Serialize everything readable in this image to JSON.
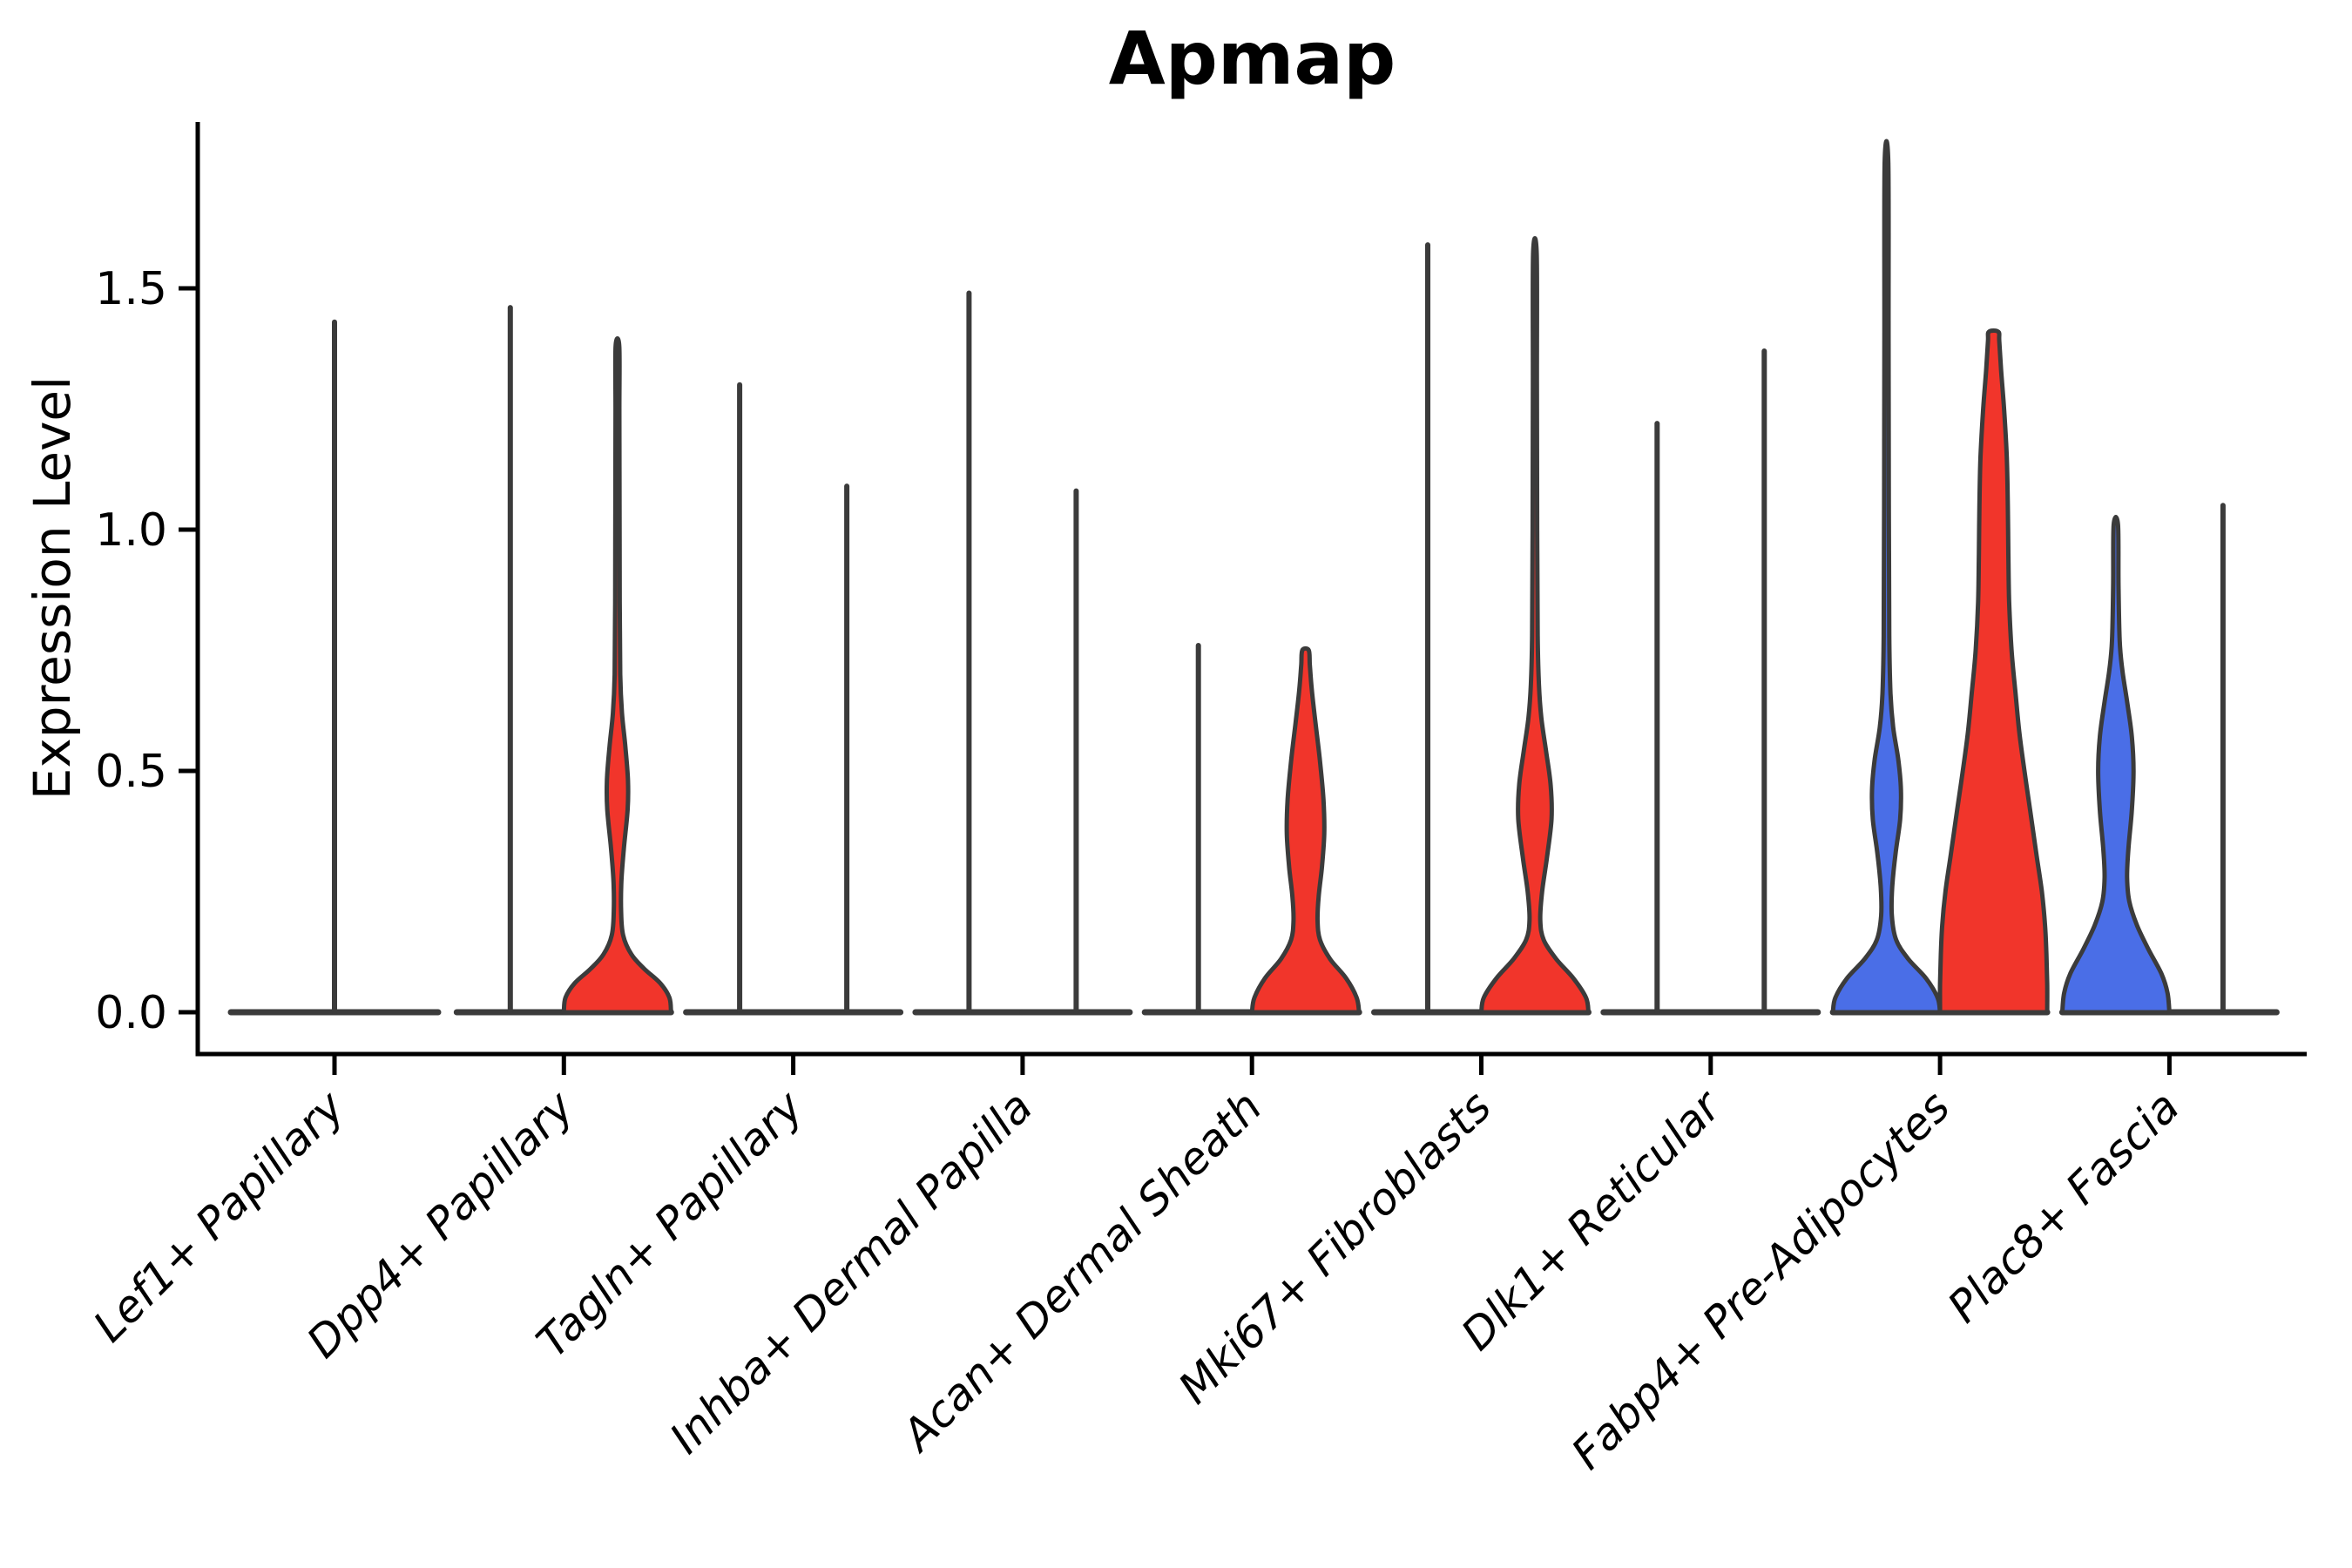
{
  "title": "Apmap",
  "axes": {
    "ylabel": "Expression Level",
    "ytick_labels": [
      "0.0",
      "0.5",
      "1.0",
      "1.5"
    ],
    "ytick_values": [
      0.0,
      0.5,
      1.0,
      1.5
    ]
  },
  "colors": {
    "red_fill": "#F1352B",
    "blue_fill": "#4A6EE7",
    "violin_outline": "#3B3B3B",
    "axis": "#000000",
    "background": "#FFFFFF"
  },
  "chart_data": {
    "type": "violin",
    "title": "Apmap",
    "ylabel": "Expression Level",
    "ylim": [
      -0.09,
      1.85
    ],
    "yticks": [
      0.0,
      0.5,
      1.0,
      1.5
    ],
    "grid": false,
    "legend_position": "none",
    "x_label_rotation_deg": 45,
    "x_label_style": "italic",
    "categories": [
      "Lef1+ Papillary",
      "Dpp4+ Papillary",
      "Tagln+ Papillary",
      "Inhba+ Dermal Papilla",
      "Acan+ Dermal Sheath",
      "Mki67+ Fibroblasts",
      "Dlk1+ Reticular",
      "Fabp4+ Pre-Adipocytes",
      "Plac8+ Fascia"
    ],
    "violins": [
      {
        "category_index": 0,
        "category": "Lef1+ Papillary",
        "side": "full",
        "color": "none",
        "max_value": 1.43,
        "profile": "spike"
      },
      {
        "category_index": 1,
        "category": "Dpp4+ Papillary",
        "side": "left",
        "color": "none",
        "max_value": 1.46,
        "profile": "spike"
      },
      {
        "category_index": 1,
        "category": "Dpp4+ Papillary",
        "side": "right",
        "color": "red",
        "max_value": 1.38,
        "profile": [
          [
            0,
            1
          ],
          [
            0.03,
            0.97
          ],
          [
            0.06,
            0.8
          ],
          [
            0.09,
            0.5
          ],
          [
            0.12,
            0.26
          ],
          [
            0.16,
            0.105
          ],
          [
            0.21,
            0.068
          ],
          [
            0.27,
            0.073
          ],
          [
            0.34,
            0.12
          ],
          [
            0.42,
            0.19
          ],
          [
            0.48,
            0.197
          ],
          [
            0.55,
            0.148
          ],
          [
            0.62,
            0.085
          ],
          [
            0.7,
            0.052
          ],
          [
            0.85,
            0.043
          ],
          [
            1.05,
            0.039
          ],
          [
            1.25,
            0.036
          ],
          [
            1.38,
            0.034
          ]
        ]
      },
      {
        "category_index": 2,
        "category": "Tagln+ Papillary",
        "side": "left",
        "color": "none",
        "max_value": 1.3,
        "profile": "spike"
      },
      {
        "category_index": 2,
        "category": "Tagln+ Papillary",
        "side": "right",
        "color": "none",
        "max_value": 1.09,
        "profile": "spike"
      },
      {
        "category_index": 3,
        "category": "Inhba+ Dermal Papilla",
        "side": "left",
        "color": "none",
        "max_value": 1.49,
        "profile": "spike"
      },
      {
        "category_index": 3,
        "category": "Inhba+ Dermal Papilla",
        "side": "right",
        "color": "none",
        "max_value": 1.08,
        "profile": "spike"
      },
      {
        "category_index": 4,
        "category": "Acan+ Dermal Sheath",
        "side": "left",
        "color": "none",
        "max_value": 0.76,
        "profile": "spike"
      },
      {
        "category_index": 4,
        "category": "Acan+ Dermal Sheath",
        "side": "right",
        "color": "red",
        "max_value": 0.75,
        "profile": [
          [
            0,
            1
          ],
          [
            0.03,
            0.955
          ],
          [
            0.07,
            0.76
          ],
          [
            0.11,
            0.46
          ],
          [
            0.15,
            0.27
          ],
          [
            0.19,
            0.225
          ],
          [
            0.24,
            0.245
          ],
          [
            0.3,
            0.305
          ],
          [
            0.37,
            0.35
          ],
          [
            0.44,
            0.335
          ],
          [
            0.52,
            0.27
          ],
          [
            0.6,
            0.185
          ],
          [
            0.67,
            0.115
          ],
          [
            0.72,
            0.08
          ],
          [
            0.75,
            0.06
          ]
        ]
      },
      {
        "category_index": 5,
        "category": "Mki67+ Fibroblasts",
        "side": "left",
        "color": "none",
        "max_value": 1.59,
        "profile": "spike"
      },
      {
        "category_index": 5,
        "category": "Mki67+ Fibroblasts",
        "side": "right",
        "color": "red",
        "max_value": 1.57,
        "profile": [
          [
            0,
            1
          ],
          [
            0.03,
            0.955
          ],
          [
            0.07,
            0.72
          ],
          [
            0.11,
            0.4
          ],
          [
            0.15,
            0.165
          ],
          [
            0.19,
            0.1
          ],
          [
            0.25,
            0.135
          ],
          [
            0.32,
            0.225
          ],
          [
            0.4,
            0.31
          ],
          [
            0.47,
            0.295
          ],
          [
            0.54,
            0.21
          ],
          [
            0.61,
            0.12
          ],
          [
            0.68,
            0.075
          ],
          [
            0.78,
            0.052
          ],
          [
            1.0,
            0.043
          ],
          [
            1.3,
            0.038
          ],
          [
            1.57,
            0.034
          ]
        ]
      },
      {
        "category_index": 6,
        "category": "Dlk1+ Reticular",
        "side": "left",
        "color": "none",
        "max_value": 1.22,
        "profile": "spike"
      },
      {
        "category_index": 6,
        "category": "Dlk1+ Reticular",
        "side": "right",
        "color": "none",
        "max_value": 1.37,
        "profile": "spike"
      },
      {
        "category_index": 7,
        "category": "Fabp4+ Pre-Adipocytes",
        "side": "left",
        "color": "blue",
        "max_value": 1.76,
        "profile": [
          [
            0,
            1
          ],
          [
            0.03,
            0.955
          ],
          [
            0.07,
            0.74
          ],
          [
            0.11,
            0.41
          ],
          [
            0.15,
            0.18
          ],
          [
            0.2,
            0.1
          ],
          [
            0.26,
            0.108
          ],
          [
            0.33,
            0.17
          ],
          [
            0.4,
            0.255
          ],
          [
            0.46,
            0.27
          ],
          [
            0.52,
            0.225
          ],
          [
            0.59,
            0.125
          ],
          [
            0.66,
            0.075
          ],
          [
            0.78,
            0.052
          ],
          [
            1.05,
            0.044
          ],
          [
            1.4,
            0.039
          ],
          [
            1.76,
            0.034
          ]
        ]
      },
      {
        "category_index": 7,
        "category": "Fabp4+ Pre-Adipocytes",
        "side": "right",
        "color": "red",
        "max_value": 1.41,
        "profile": [
          [
            0,
            1
          ],
          [
            0.06,
            1.0
          ],
          [
            0.12,
            0.985
          ],
          [
            0.18,
            0.96
          ],
          [
            0.25,
            0.9
          ],
          [
            0.33,
            0.795
          ],
          [
            0.42,
            0.68
          ],
          [
            0.5,
            0.575
          ],
          [
            0.58,
            0.48
          ],
          [
            0.66,
            0.41
          ],
          [
            0.75,
            0.335
          ],
          [
            0.85,
            0.29
          ],
          [
            0.95,
            0.275
          ],
          [
            1.05,
            0.265
          ],
          [
            1.15,
            0.245
          ],
          [
            1.25,
            0.195
          ],
          [
            1.33,
            0.14
          ],
          [
            1.39,
            0.105
          ],
          [
            1.41,
            0.088
          ]
        ]
      },
      {
        "category_index": 8,
        "category": "Plac8+ Fascia",
        "side": "left",
        "color": "blue",
        "max_value": 1.01,
        "profile": [
          [
            0,
            1
          ],
          [
            0.04,
            0.965
          ],
          [
            0.08,
            0.85
          ],
          [
            0.13,
            0.61
          ],
          [
            0.18,
            0.395
          ],
          [
            0.23,
            0.25
          ],
          [
            0.28,
            0.21
          ],
          [
            0.34,
            0.235
          ],
          [
            0.42,
            0.3
          ],
          [
            0.5,
            0.33
          ],
          [
            0.57,
            0.3
          ],
          [
            0.64,
            0.215
          ],
          [
            0.71,
            0.12
          ],
          [
            0.77,
            0.072
          ],
          [
            0.88,
            0.05
          ],
          [
            1.01,
            0.04
          ]
        ]
      },
      {
        "category_index": 8,
        "category": "Plac8+ Fascia",
        "side": "right",
        "color": "none",
        "max_value": 1.05,
        "profile": "spike"
      }
    ]
  }
}
